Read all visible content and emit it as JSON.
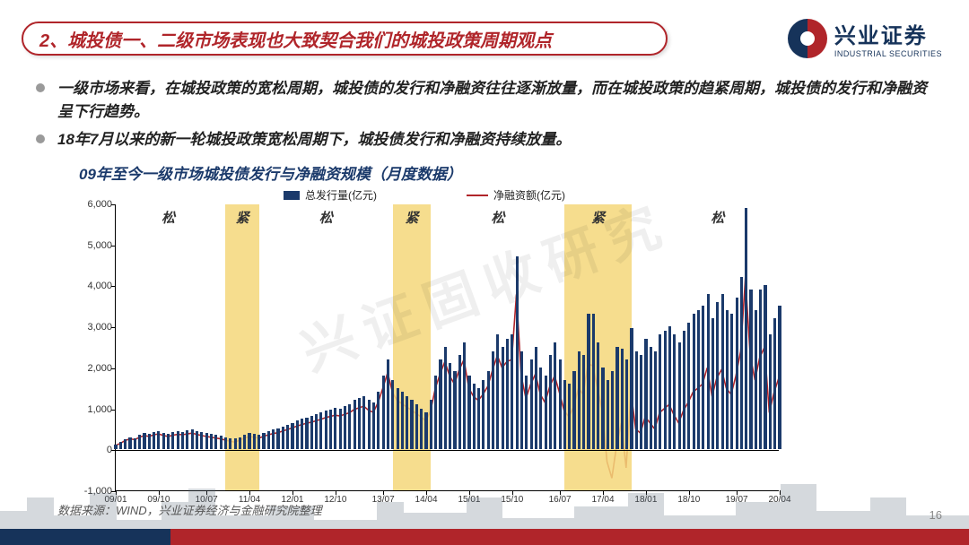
{
  "header": {
    "title": "2、城投债一、二级市场表现也大致契合我们的城投政策周期观点"
  },
  "logo": {
    "cn": "兴业证券",
    "en": "INDUSTRIAL SECURITIES"
  },
  "bullets": [
    "一级市场来看，在城投政策的宽松周期，城投债的发行和净融资往往逐渐放量，而在城投政策的趋紧周期，城投债的发行和净融资呈下行趋势。",
    "18年7月以来的新一轮城投政策宽松周期下，城投债发行和净融资持续放量。"
  ],
  "chart": {
    "title": "09年至今一级市场城投债发行与净融资规模（月度数据）",
    "legend": {
      "bar": "总发行量(亿元)",
      "line": "净融资额(亿元)"
    },
    "ylim": [
      -1000,
      6000
    ],
    "yticks": [
      -1000,
      0,
      1000,
      2000,
      3000,
      4000,
      5000,
      6000
    ],
    "xticks": [
      "09/01",
      "09/10",
      "10/07",
      "11/04",
      "12/01",
      "12/10",
      "13/07",
      "14/04",
      "15/01",
      "15/10",
      "16/07",
      "17/04",
      "18/01",
      "18/10",
      "19/07",
      "20/04"
    ],
    "bands": [
      {
        "from": 23,
        "to": 30,
        "label": "紧"
      },
      {
        "from": 58,
        "to": 66,
        "label": "紧"
      },
      {
        "from": 94,
        "to": 108,
        "label": "紧"
      }
    ],
    "period_labels": [
      {
        "at": 11,
        "text": "松"
      },
      {
        "at": 44,
        "text": "松"
      },
      {
        "at": 80,
        "text": "松"
      },
      {
        "at": 126,
        "text": "松"
      }
    ],
    "n_points": 140,
    "bars": [
      120,
      180,
      250,
      300,
      280,
      350,
      400,
      380,
      420,
      450,
      400,
      380,
      420,
      450,
      430,
      460,
      480,
      450,
      420,
      400,
      380,
      360,
      340,
      300,
      280,
      260,
      300,
      350,
      400,
      380,
      360,
      400,
      450,
      480,
      500,
      550,
      600,
      650,
      700,
      750,
      780,
      820,
      850,
      900,
      950,
      980,
      1020,
      1000,
      1050,
      1100,
      1200,
      1250,
      1300,
      1200,
      1150,
      1400,
      1800,
      2200,
      1700,
      1500,
      1400,
      1300,
      1200,
      1100,
      1000,
      900,
      1200,
      1800,
      2200,
      2500,
      2100,
      1900,
      2300,
      2600,
      1800,
      1600,
      1500,
      1700,
      1900,
      2400,
      2800,
      2500,
      2700,
      2800,
      4700,
      2400,
      1800,
      2200,
      2500,
      2000,
      1800,
      2300,
      2600,
      2200,
      1700,
      1600,
      1900,
      2400,
      2300,
      3300,
      3300,
      2600,
      2000,
      1700,
      1900,
      2500,
      2450,
      2200,
      2950,
      2400,
      2300,
      2700,
      2500,
      2400,
      2800,
      2900,
      3000,
      2800,
      2600,
      2900,
      3100,
      3300,
      3400,
      3500,
      3800,
      3200,
      3600,
      3800,
      3400,
      3300,
      3700,
      4200,
      5900,
      3900,
      3400,
      3900,
      4000,
      2800,
      3200,
      3500
    ],
    "line": [
      100,
      150,
      220,
      260,
      240,
      300,
      340,
      320,
      360,
      380,
      340,
      320,
      350,
      370,
      360,
      380,
      400,
      370,
      340,
      320,
      300,
      280,
      260,
      230,
      200,
      180,
      230,
      280,
      320,
      300,
      280,
      320,
      360,
      390,
      410,
      450,
      490,
      530,
      570,
      610,
      640,
      670,
      700,
      740,
      780,
      810,
      840,
      820,
      860,
      900,
      980,
      1020,
      1060,
      960,
      910,
      1150,
      1500,
      1880,
      1400,
      1200,
      1120,
      1040,
      960,
      880,
      800,
      700,
      950,
      1500,
      1850,
      2150,
      1800,
      1600,
      1950,
      2200,
      1500,
      1300,
      1200,
      1350,
      1550,
      1950,
      2300,
      2000,
      2150,
      2200,
      3800,
      1800,
      1250,
      1600,
      1850,
      1350,
      1150,
      1550,
      1800,
      1400,
      950,
      800,
      1050,
      1500,
      1350,
      2100,
      2050,
      1500,
      950,
      -300,
      -700,
      100,
      650,
      -450,
      1400,
      500,
      400,
      800,
      650,
      500,
      900,
      1000,
      1100,
      850,
      650,
      950,
      1150,
      1400,
      1500,
      1600,
      2000,
      1300,
      1750,
      1950,
      1500,
      1350,
      1800,
      2400,
      4200,
      2300,
      1700,
      2250,
      2500,
      900,
      1400,
      1750
    ],
    "colors": {
      "bar": "#1b3a6b",
      "line": "#b0252a",
      "band": "#f5d77a",
      "title": "#1b3a6b",
      "header_red": "#b0252a",
      "header_navy": "#16335a"
    }
  },
  "source": "数据来源：WIND，兴业证券经济与金融研究院整理",
  "page": "16",
  "watermark": "兴证固收研究"
}
